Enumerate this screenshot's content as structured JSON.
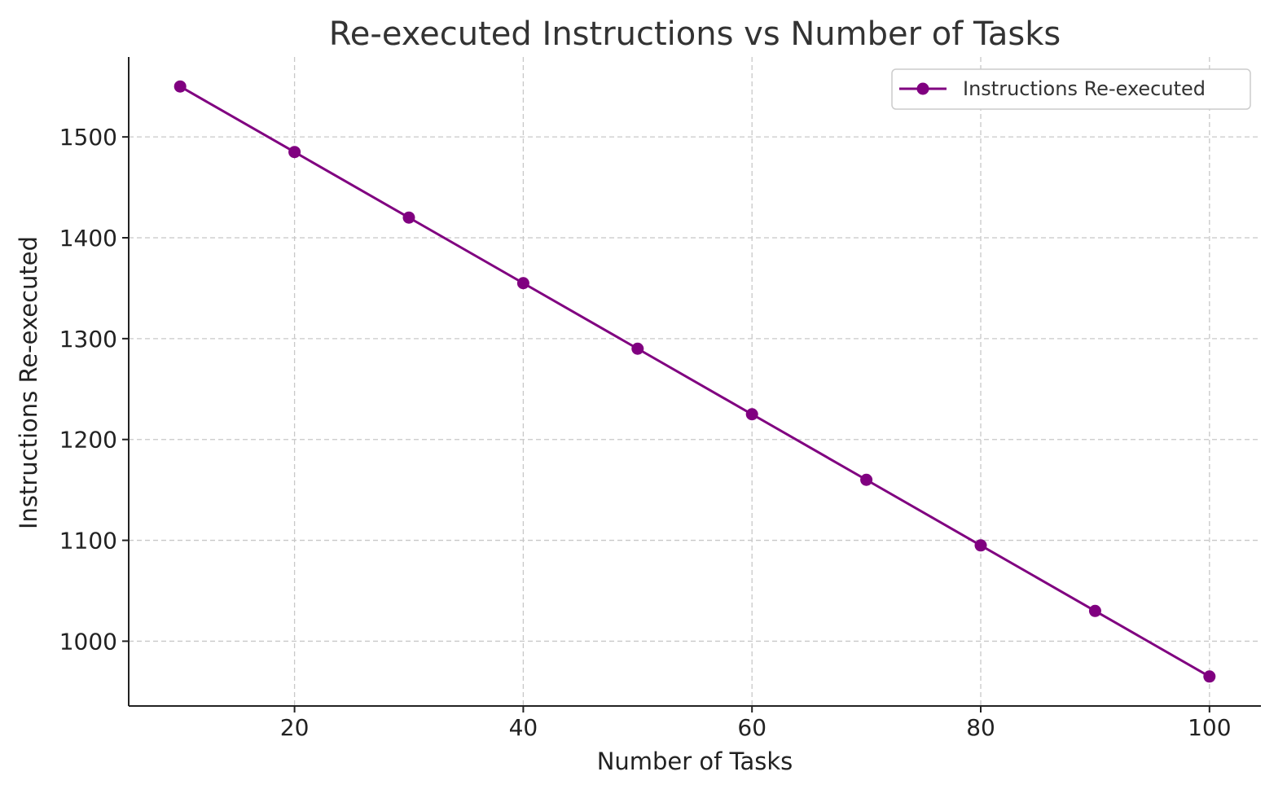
{
  "chart_data": {
    "type": "line",
    "title": "Re-executed Instructions vs Number of Tasks",
    "xlabel": "Number of Tasks",
    "ylabel": "Instructions Re-executed",
    "x": [
      10,
      20,
      30,
      40,
      50,
      60,
      70,
      80,
      90,
      100
    ],
    "series": [
      {
        "name": "Instructions Re-executed",
        "values": [
          1550,
          1485,
          1420,
          1355,
          1290,
          1225,
          1160,
          1095,
          1030,
          965
        ],
        "color": "#800080",
        "marker": "circle"
      }
    ],
    "xlim": [
      5.5,
      104.5
    ],
    "ylim": [
      935.75,
      1579.25
    ],
    "xticks": [
      20,
      40,
      60,
      80,
      100
    ],
    "yticks": [
      1000,
      1100,
      1200,
      1300,
      1400,
      1500
    ],
    "grid": true,
    "legend_position": "top-right"
  }
}
